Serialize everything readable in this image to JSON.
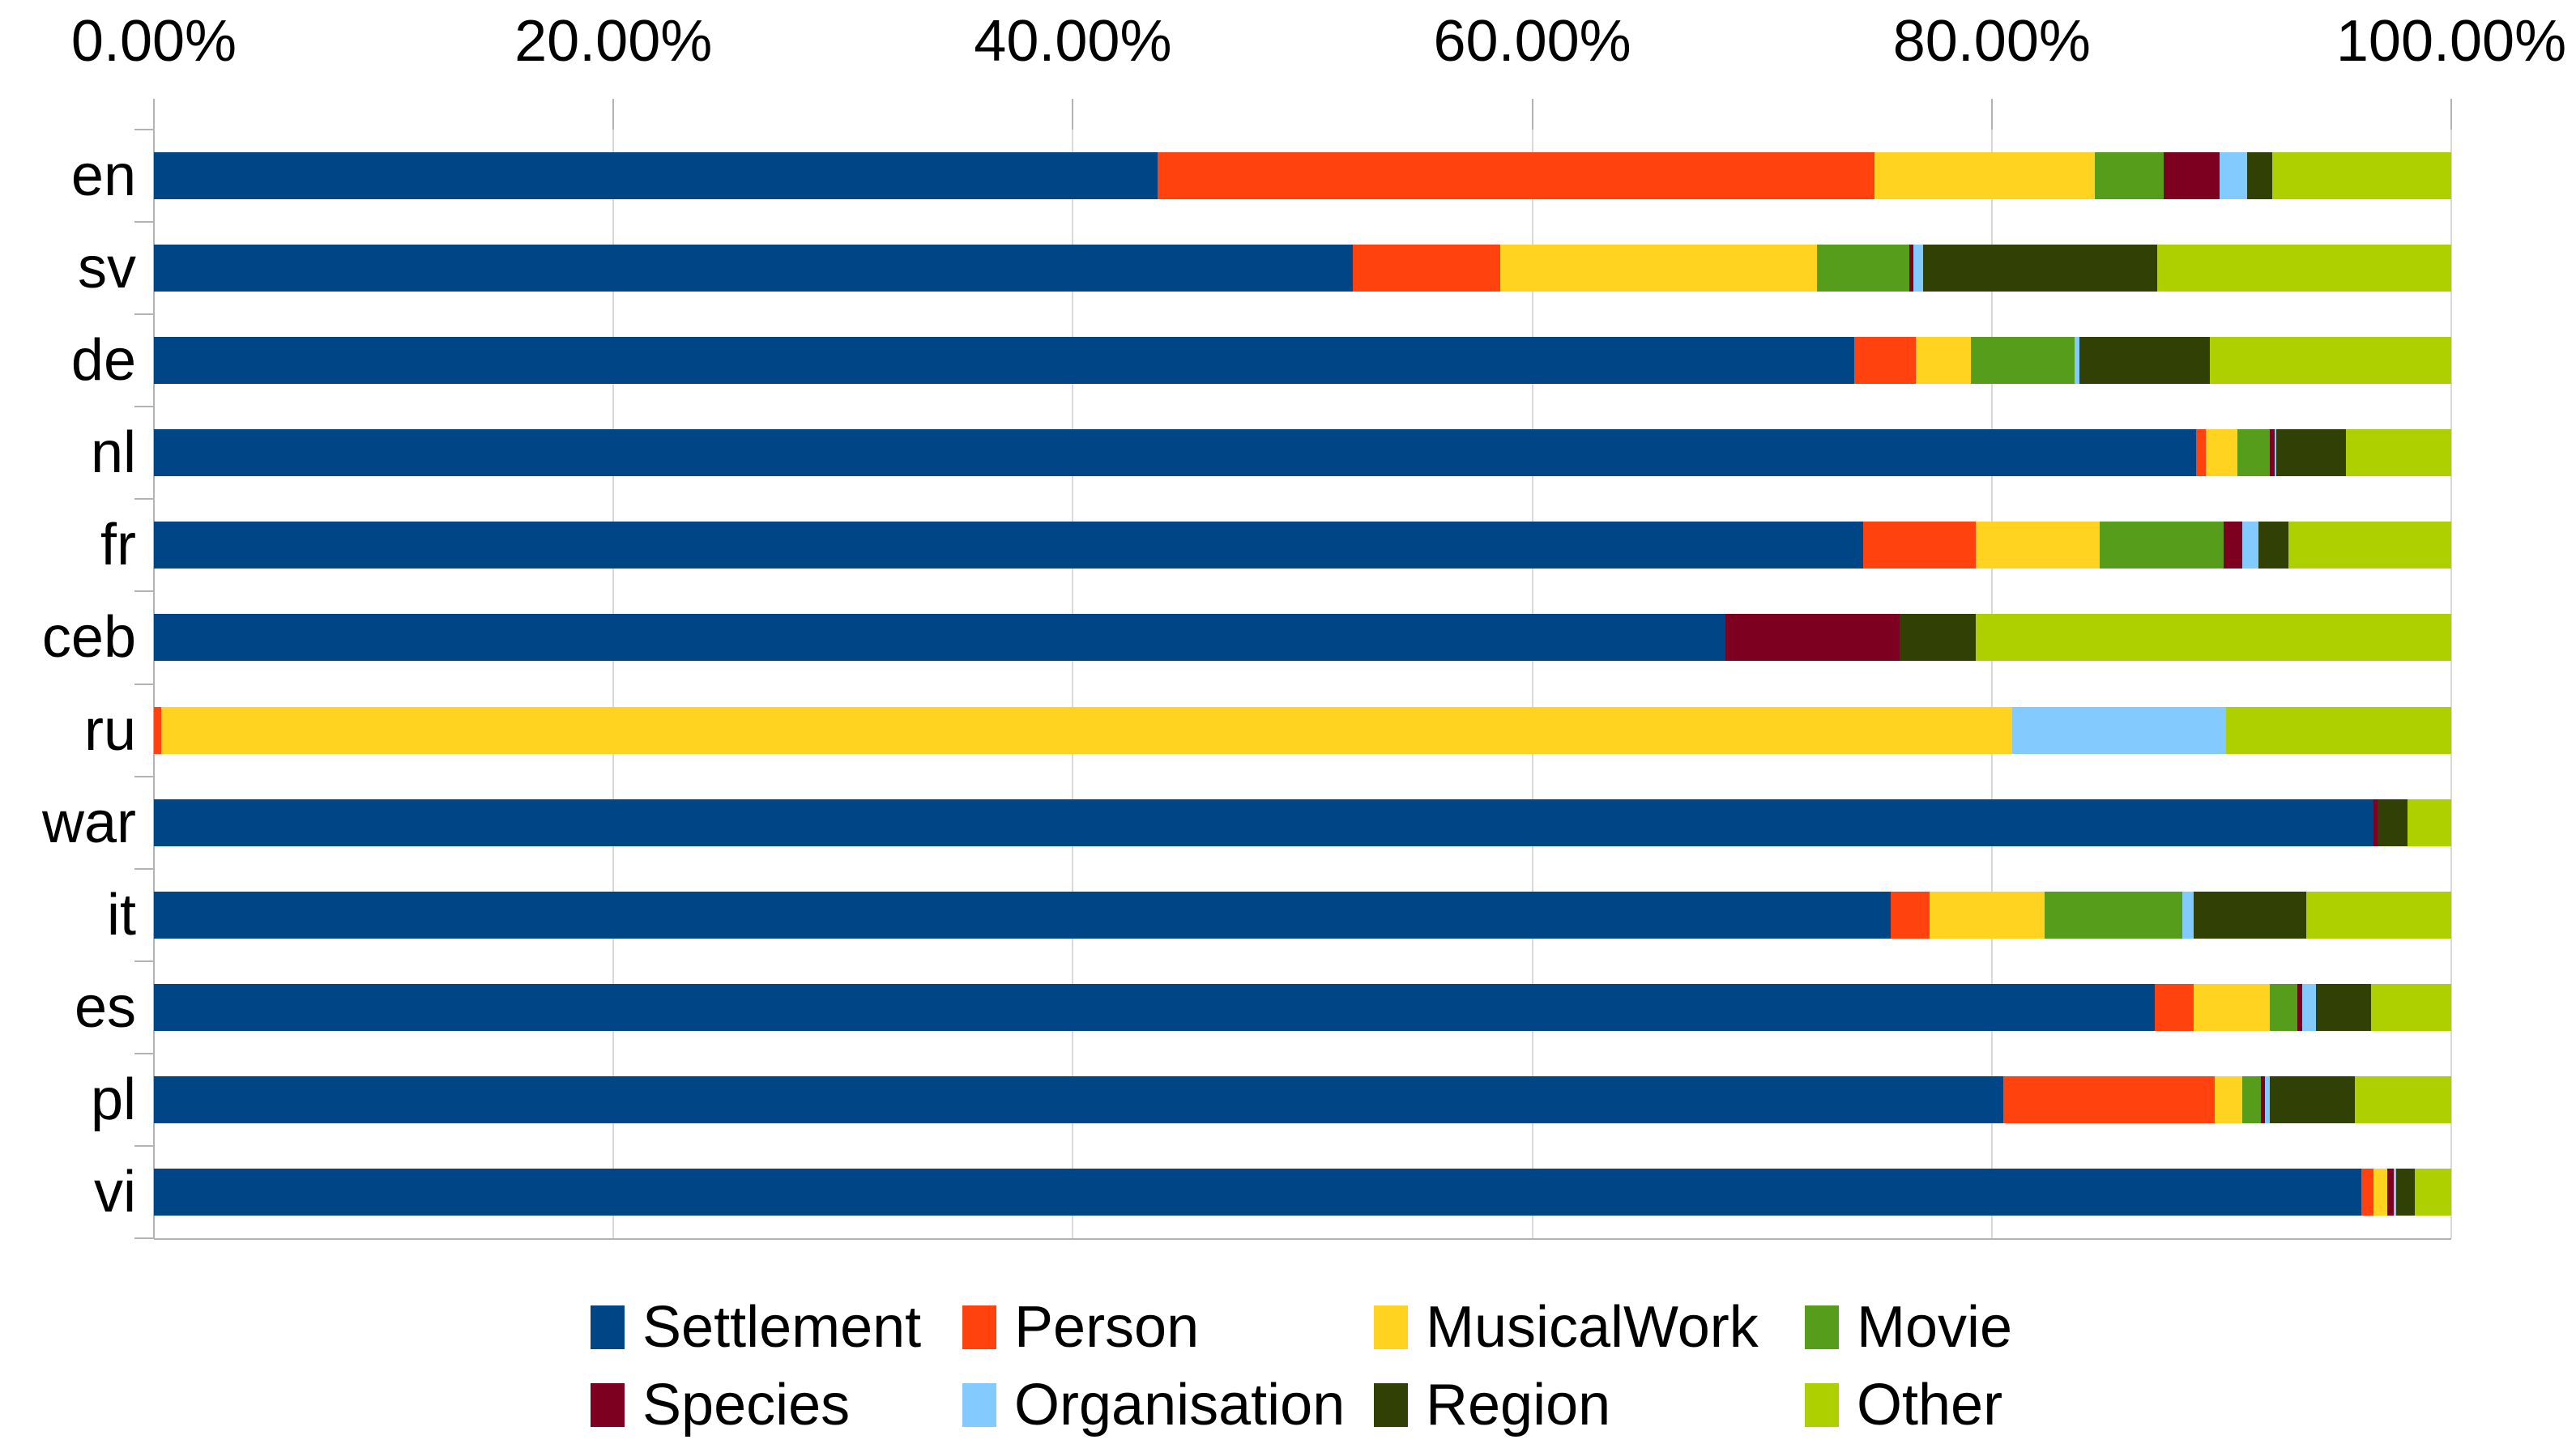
{
  "chart_data": {
    "type": "bar",
    "orientation": "horizontal",
    "stacked": true,
    "title": "",
    "categories": [
      "en",
      "sv",
      "de",
      "nl",
      "fr",
      "ceb",
      "ru",
      "war",
      "it",
      "es",
      "pl",
      "vi"
    ],
    "series": [
      {
        "name": "Settlement",
        "color": "#004586",
        "values": [
          43.7,
          52.2,
          74.0,
          88.9,
          74.4,
          68.4,
          0,
          96.6,
          75.6,
          87.1,
          80.5,
          96.1
        ]
      },
      {
        "name": "Person",
        "color": "#FF420E",
        "values": [
          31.2,
          6.4,
          2.7,
          0.4,
          4.9,
          0,
          0.3,
          0,
          1.7,
          1.7,
          9.2,
          0.5
        ]
      },
      {
        "name": "MusicalWork",
        "color": "#FFD320",
        "values": [
          9.6,
          13.8,
          2.4,
          1.4,
          5.4,
          0,
          80.6,
          0,
          5.0,
          3.3,
          1.2,
          0.6
        ]
      },
      {
        "name": "Movie",
        "color": "#579D1C",
        "values": [
          3.0,
          4.0,
          4.5,
          1.4,
          5.4,
          0,
          0,
          0,
          6.0,
          1.2,
          0.8,
          0
        ]
      },
      {
        "name": "Species",
        "color": "#7E0021",
        "values": [
          2.4,
          0.2,
          0,
          0.2,
          0.8,
          7.6,
          0,
          0.2,
          0,
          0.2,
          0.2,
          0.3
        ]
      },
      {
        "name": "Organisation",
        "color": "#83CAFF",
        "values": [
          1.2,
          0.4,
          0.2,
          0.1,
          0.7,
          0,
          9.3,
          0,
          0.5,
          0.6,
          0.2,
          0.1
        ]
      },
      {
        "name": "Region",
        "color": "#314004",
        "values": [
          1.1,
          10.2,
          5.7,
          3.0,
          1.3,
          3.3,
          0,
          1.3,
          4.9,
          2.4,
          3.7,
          0.8
        ]
      },
      {
        "name": "Other",
        "color": "#AECF00",
        "values": [
          7.8,
          12.8,
          10.5,
          4.6,
          7.1,
          20.7,
          9.8,
          1.9,
          6.3,
          3.5,
          4.2,
          1.6
        ]
      }
    ],
    "x_axis": {
      "position": "top",
      "min": 0,
      "max": 100,
      "tick_labels": [
        "0.00%",
        "20.00%",
        "40.00%",
        "60.00%",
        "80.00%",
        "100.00%"
      ],
      "grid": true
    },
    "xlim": [
      0,
      100
    ],
    "legend": {
      "position": "bottom",
      "rows": 2,
      "entries": [
        "Settlement",
        "Person",
        "MusicalWork",
        "Movie",
        "Species",
        "Organisation",
        "Region",
        "Other"
      ]
    }
  },
  "style_colors": {
    "grid": "#d9d9d9",
    "axis": "#b3b3b3",
    "background": "#ffffff",
    "text": "#000000"
  }
}
